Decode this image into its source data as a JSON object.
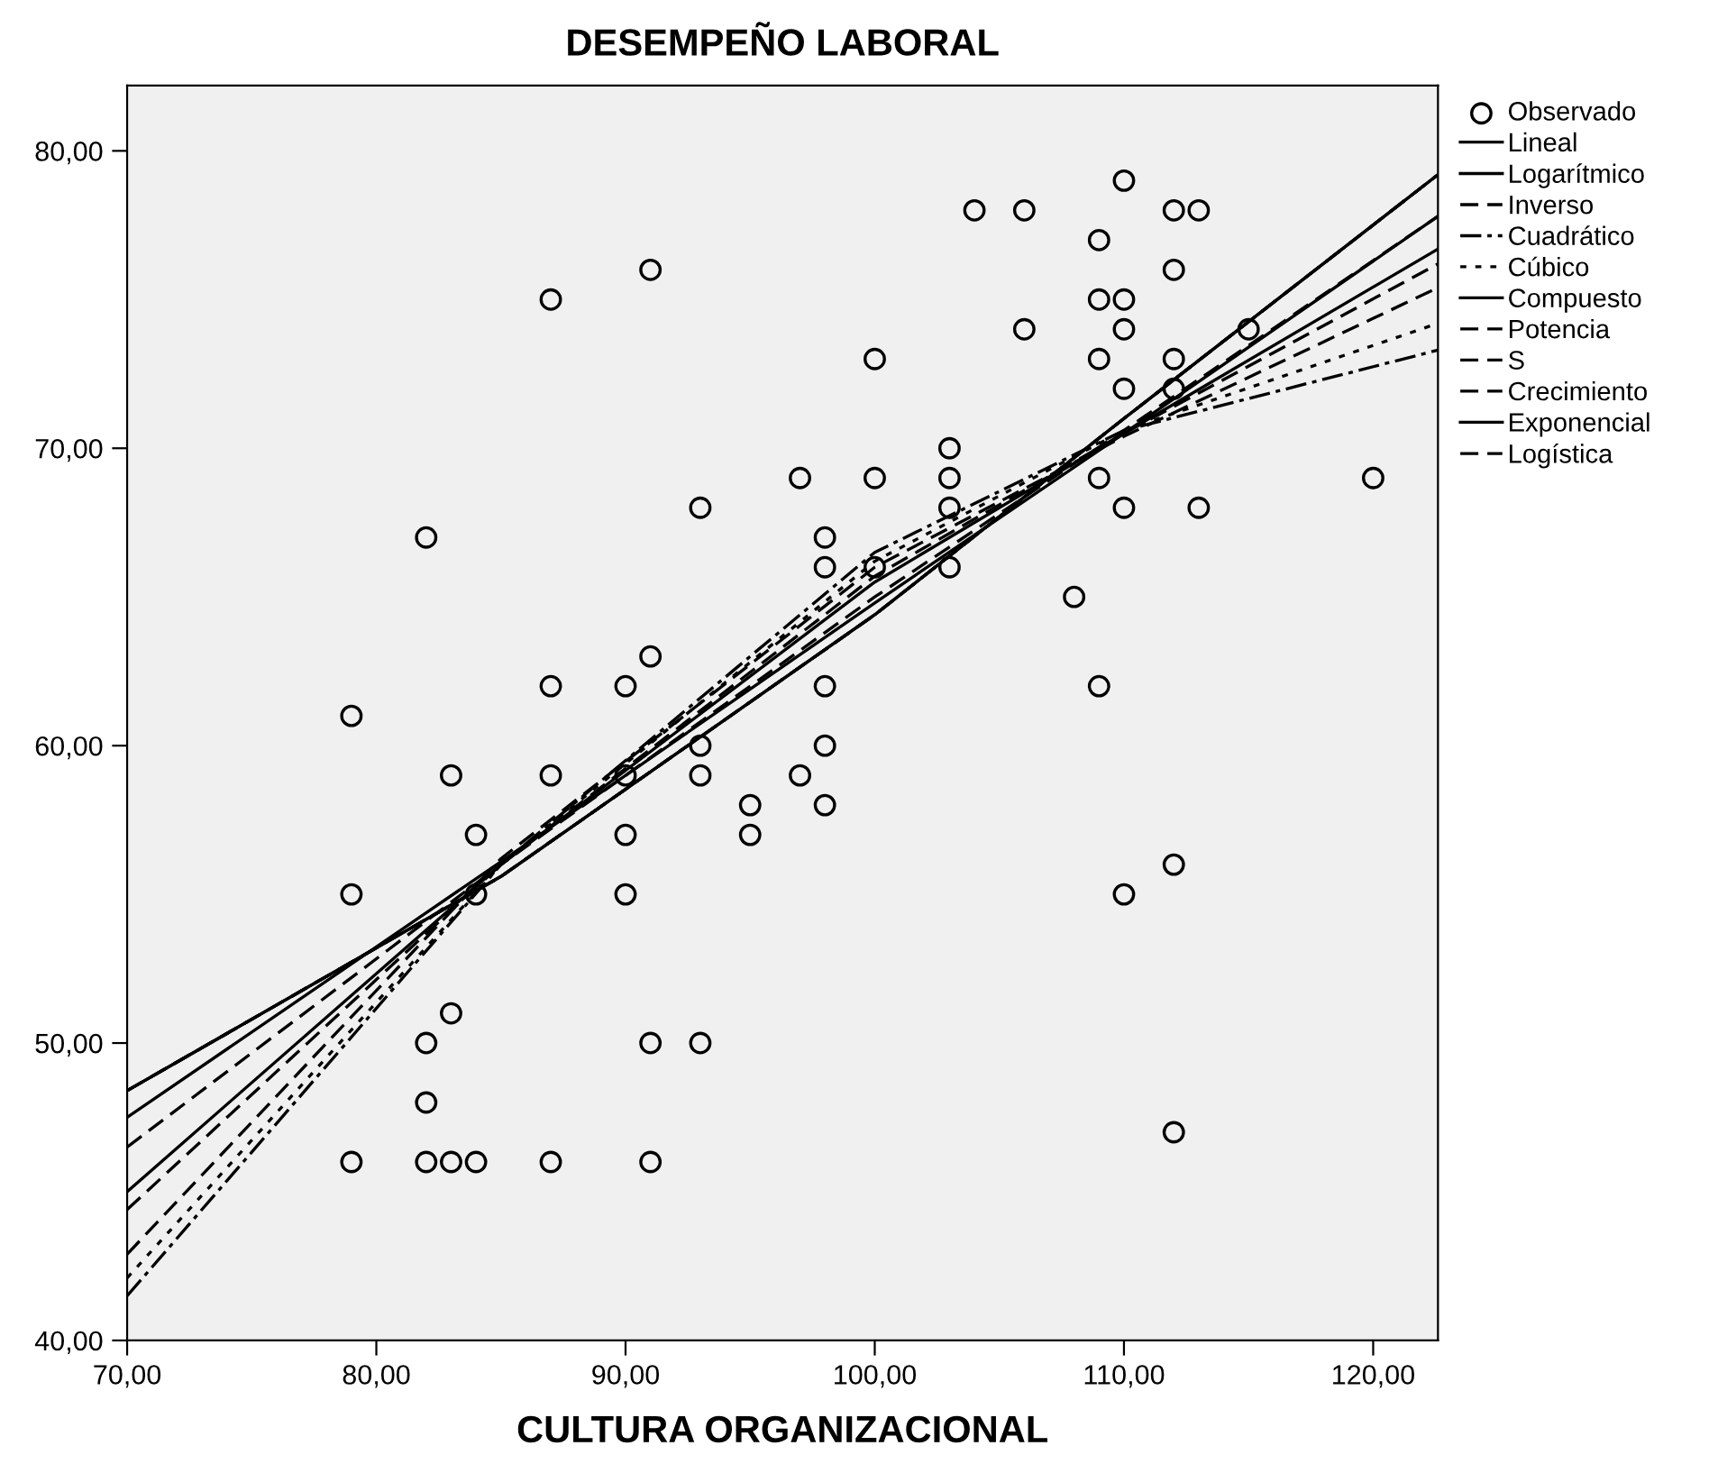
{
  "chart_data": {
    "type": "scatter",
    "title": "DESEMPEÑO LABORAL",
    "xlabel": "CULTURA ORGANIZACIONAL",
    "xlim": [
      70,
      122.6
    ],
    "ylim": [
      40,
      82.2
    ],
    "xticks": [
      {
        "value": 70,
        "label": "70,00"
      },
      {
        "value": 80,
        "label": "80,00"
      },
      {
        "value": 90,
        "label": "90,00"
      },
      {
        "value": 100,
        "label": "100,00"
      },
      {
        "value": 110,
        "label": "110,00"
      },
      {
        "value": 120,
        "label": "120,00"
      }
    ],
    "yticks": [
      {
        "value": 40,
        "label": "40,00"
      },
      {
        "value": 50,
        "label": "50,00"
      },
      {
        "value": 60,
        "label": "60,00"
      },
      {
        "value": 70,
        "label": "70,00"
      },
      {
        "value": 80,
        "label": "80,00"
      }
    ],
    "grid": false,
    "legend": "right",
    "series": [
      {
        "name": "Observado",
        "marker": "circle",
        "color": "#000000",
        "x": [
          79,
          79,
          79,
          82,
          82,
          82,
          82,
          83,
          83,
          83,
          84,
          84,
          84,
          87,
          87,
          87,
          87,
          90,
          90,
          90,
          90,
          91,
          91,
          91,
          91,
          93,
          93,
          93,
          93,
          95,
          95,
          97,
          97,
          98,
          98,
          98,
          98,
          98,
          100,
          100,
          100,
          103,
          103,
          103,
          103,
          104,
          106,
          106,
          108,
          109,
          109,
          109,
          109,
          109,
          110,
          110,
          110,
          110,
          110,
          110,
          112,
          112,
          112,
          112,
          112,
          112,
          113,
          113,
          115,
          120
        ],
        "values": [
          61,
          55,
          46,
          67,
          50,
          48,
          46,
          59,
          51,
          46,
          57,
          55,
          46,
          75,
          62,
          59,
          46,
          62,
          59,
          57,
          55,
          76,
          63,
          50,
          46,
          68,
          60,
          59,
          50,
          58,
          57,
          69,
          59,
          67,
          66,
          62,
          60,
          58,
          73,
          69,
          66,
          70,
          69,
          68,
          66,
          78,
          78,
          74,
          65,
          77,
          75,
          73,
          69,
          62,
          79,
          75,
          74,
          72,
          68,
          55,
          78,
          76,
          73,
          72,
          56,
          47,
          78,
          68,
          74,
          69
        ]
      },
      {
        "name": "Lineal",
        "type": "line",
        "line_style": "solid",
        "color": "#000000",
        "x": [
          70,
          85,
          100,
          110,
          122.6
        ],
        "values": [
          47.5,
          56.1,
          64.8,
          70.5,
          77.8
        ]
      },
      {
        "name": "Logarítmico",
        "type": "line",
        "line_style": "solid",
        "color": "#000000",
        "x": [
          70,
          85,
          100,
          110,
          122.6
        ],
        "values": [
          45.0,
          56.0,
          65.5,
          70.5,
          76.7
        ]
      },
      {
        "name": "Inverso",
        "type": "line",
        "line_style": "dashed",
        "color": "#000000",
        "x": [
          70,
          85,
          100,
          110,
          122.6
        ],
        "values": [
          42.9,
          56.2,
          66.0,
          70.4,
          75.4
        ]
      },
      {
        "name": "Cuadrático",
        "type": "line",
        "line_style": "dashdot",
        "color": "#000000",
        "x": [
          70,
          85,
          100,
          110,
          122.6
        ],
        "values": [
          41.5,
          56.0,
          66.5,
          70.6,
          73.3
        ]
      },
      {
        "name": "Cúbico",
        "type": "line",
        "line_style": "dotted",
        "color": "#000000",
        "x": [
          70,
          85,
          100,
          110,
          122.6
        ],
        "values": [
          42.1,
          56.0,
          66.2,
          70.6,
          74.2
        ]
      },
      {
        "name": "Compuesto",
        "type": "line",
        "line_style": "solid",
        "color": "#000000",
        "x": [
          70,
          85,
          100,
          110,
          122.6
        ],
        "values": [
          48.4,
          55.6,
          64.4,
          71.0,
          79.2
        ]
      },
      {
        "name": "Potencia",
        "type": "line",
        "line_style": "dashed",
        "color": "#000000",
        "x": [
          70,
          85,
          100,
          110,
          122.6
        ],
        "values": [
          46.5,
          56.0,
          65.0,
          70.6,
          77.8
        ]
      },
      {
        "name": "S",
        "type": "line",
        "line_style": "dashed",
        "color": "#000000",
        "x": [
          70,
          85,
          100,
          110,
          122.6
        ],
        "values": [
          44.4,
          56.0,
          65.7,
          70.5,
          76.2
        ]
      },
      {
        "name": "Crecimiento",
        "type": "line",
        "line_style": "dashed",
        "color": "#000000",
        "x": [
          70,
          85,
          100,
          110,
          122.6
        ],
        "values": [
          48.4,
          55.6,
          64.4,
          71.0,
          79.2
        ]
      },
      {
        "name": "Exponencial",
        "type": "line",
        "line_style": "solid",
        "color": "#000000",
        "x": [
          70,
          85,
          100,
          110,
          122.6
        ],
        "values": [
          48.4,
          55.6,
          64.4,
          71.0,
          79.2
        ]
      },
      {
        "name": "Logística",
        "type": "line",
        "line_style": "dashed",
        "color": "#000000",
        "x": [
          70,
          85,
          100,
          110,
          122.6
        ],
        "values": [
          48.4,
          55.6,
          64.4,
          71.0,
          79.2
        ]
      }
    ]
  }
}
